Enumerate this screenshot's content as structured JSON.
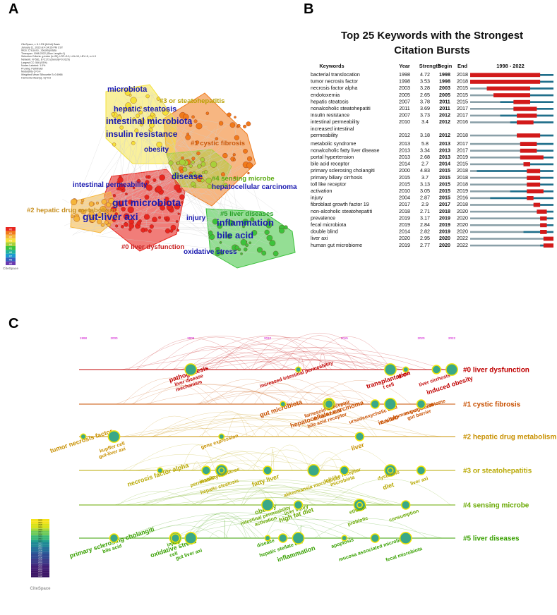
{
  "panels": {
    "a": "A",
    "b": "B",
    "c": "C"
  },
  "chart_data": [
    {
      "type": "network",
      "panel": "A",
      "info_lines": [
        "CiteSpace, v. 6.1.R6 (64-bit) Basic",
        "January 11, 2023 at 4:34:26 PM CST",
        "WoS: C:\\Users\\...\\Desktop\\data",
        "Timespan: 1998-2022 (Slice Length=1)",
        "Selection Criteria: g-index (k=25), LRF=3.0, L/N=10, LBY=5, e=1.0",
        "Network: N=581, E=2173 (Density=0.0129)",
        "Largest CC: 546 (93%)",
        "Nodes Labeled: 1.0%",
        "Pruning: Pathfinder",
        "Modularity Q=0.4",
        "Weighted Mean Silhouette S=0.6966",
        "Harmonic Mean(Q, S)=0.5"
      ],
      "clusters": [
        {
          "id": "#0 liver dysfunction",
          "color": "#e8261f"
        },
        {
          "id": "#1 cystic fibrosis",
          "color": "#f07a1a"
        },
        {
          "id": "#2 hepatic drug metabolism",
          "color": "#f5b53a"
        },
        {
          "id": "#3 or steatohepatitis",
          "color": "#f4e13a"
        },
        {
          "id": "#4 sensing microbe",
          "color": "#a8d03a"
        },
        {
          "id": "#5 liver diseases",
          "color": "#3cc23c"
        }
      ],
      "keywords": [
        "microbiota",
        "hepatic steatosis",
        "intestinal microbiota",
        "insulin resistance",
        "obesity",
        "disease",
        "hepatocellular carcinoma",
        "intestinal permeability",
        "gut microbiota",
        "gut-liver axi",
        "injury",
        "inflammation",
        "bile acid",
        "oxidative stress"
      ],
      "legend_labels": [
        "#0",
        "#1",
        "#2",
        "#3",
        "#4",
        "#5",
        "#6",
        "#7",
        "#8",
        "#9"
      ],
      "legend_colors": [
        "#e8261f",
        "#f07a1a",
        "#f5b53a",
        "#f4e13a",
        "#a8d03a",
        "#3cc23c",
        "#1fb39a",
        "#1a9ad0",
        "#3460c0",
        "#6a3ab0"
      ],
      "logo": "CiteSpace"
    },
    {
      "type": "table",
      "panel": "B",
      "title": [
        "Top 25 Keywords with the Strongest",
        "Citation Bursts"
      ],
      "columns": [
        "Keywords",
        "Year",
        "Strength",
        "Begin",
        "End",
        "1998 - 2022"
      ],
      "range": [
        1998,
        2022
      ],
      "rows": [
        {
          "keyword": [
            "bacterial translocation"
          ],
          "year": 1998,
          "strength": "4.72",
          "begin": 1998,
          "end": 2018
        },
        {
          "keyword": [
            "tumor necrosis factor"
          ],
          "year": 1998,
          "strength": "3.53",
          "begin": 1998,
          "end": 2018
        },
        {
          "keyword": [
            "necrosis factor alpha"
          ],
          "year": 2003,
          "strength": "3.28",
          "begin": 2003,
          "end": 2015
        },
        {
          "keyword": [
            "endotoxemia"
          ],
          "year": 2005,
          "strength": "2.65",
          "begin": 2005,
          "end": 2015
        },
        {
          "keyword": [
            "hepatic steatosis"
          ],
          "year": 2007,
          "strength": "3.78",
          "begin": 2011,
          "end": 2015
        },
        {
          "keyword": [
            "nonalcoholic steatohepatiti"
          ],
          "year": 2011,
          "strength": "3.69",
          "begin": 2011,
          "end": 2017
        },
        {
          "keyword": [
            "insulin resistance"
          ],
          "year": 2007,
          "strength": "3.73",
          "begin": 2012,
          "end": 2017
        },
        {
          "keyword": [
            "intestinal permeability"
          ],
          "year": 2010,
          "strength": "3.4",
          "begin": 2012,
          "end": 2016
        },
        {
          "keyword": [
            "increased intestinal",
            "permeability"
          ],
          "year": 2012,
          "strength": "3.18",
          "begin": 2012,
          "end": 2018
        },
        {
          "keyword": [
            "metabolic syndrome"
          ],
          "year": 2013,
          "strength": "5.8",
          "begin": 2013,
          "end": 2017
        },
        {
          "keyword": [
            "nonalcoholic fatty liver disease"
          ],
          "year": 2013,
          "strength": "3.34",
          "begin": 2013,
          "end": 2017
        },
        {
          "keyword": [
            "portal hypertension"
          ],
          "year": 2013,
          "strength": "2.68",
          "begin": 2013,
          "end": 2019
        },
        {
          "keyword": [
            "bile acid receptor"
          ],
          "year": 2014,
          "strength": "2.7",
          "begin": 2014,
          "end": 2015
        },
        {
          "keyword": [
            "primary sclerosing cholangiti"
          ],
          "year": 2000,
          "strength": "4.83",
          "begin": 2015,
          "end": 2018
        },
        {
          "keyword": [
            "primary biliary cirrhosis"
          ],
          "year": 2015,
          "strength": "3.7",
          "begin": 2015,
          "end": 2018
        },
        {
          "keyword": [
            "toll like receptor"
          ],
          "year": 2015,
          "strength": "3.13",
          "begin": 2015,
          "end": 2018
        },
        {
          "keyword": [
            "activation"
          ],
          "year": 2010,
          "strength": "3.05",
          "begin": 2015,
          "end": 2019
        },
        {
          "keyword": [
            "injury"
          ],
          "year": 2004,
          "strength": "2.87",
          "begin": 2015,
          "end": 2016
        },
        {
          "keyword": [
            "fibroblast growth factor 19"
          ],
          "year": 2017,
          "strength": "2.9",
          "begin": 2017,
          "end": 2018
        },
        {
          "keyword": [
            "non-alcoholic steatohepatiti"
          ],
          "year": 2018,
          "strength": "2.71",
          "begin": 2018,
          "end": 2020
        },
        {
          "keyword": [
            "prevalence"
          ],
          "year": 2019,
          "strength": "3.17",
          "begin": 2019,
          "end": 2020
        },
        {
          "keyword": [
            "fecal microbiota"
          ],
          "year": 2019,
          "strength": "2.84",
          "begin": 2019,
          "end": 2020
        },
        {
          "keyword": [
            "double blind"
          ],
          "year": 2014,
          "strength": "2.82",
          "begin": 2019,
          "end": 2020
        },
        {
          "keyword": [
            "liver axi"
          ],
          "year": 2020,
          "strength": "2.95",
          "begin": 2020,
          "end": 2022
        },
        {
          "keyword": [
            "human gut microbiome"
          ],
          "year": 2019,
          "strength": "2.77",
          "begin": 2020,
          "end": 2022
        }
      ]
    },
    {
      "type": "timeline",
      "panel": "C",
      "year_ticks": [
        1998,
        2000,
        2005,
        2010,
        2015,
        2020,
        2022
      ],
      "clusters": [
        {
          "label": "#0 liver dysfunction",
          "color": "#c00000",
          "keywords": [
            {
              "text": "pathogenesis",
              "year": 2005
            },
            {
              "text": "liver disease",
              "year": 2005
            },
            {
              "text": "mechanism",
              "year": 2005
            },
            {
              "text": "increased intestinal permeability",
              "year": 2012
            },
            {
              "text": "transplantation",
              "year": 2018
            },
            {
              "text": "t cell",
              "year": 2018
            },
            {
              "text": "gene",
              "year": 2019
            },
            {
              "text": "liver cirrhosis",
              "year": 2021
            },
            {
              "text": "induced obesity",
              "year": 2022
            }
          ]
        },
        {
          "label": "#1 cystic fibrosis",
          "color": "#c85000",
          "keywords": [
            {
              "text": "gut microbiota",
              "year": 2011
            },
            {
              "text": "double blind",
              "year": 2014
            },
            {
              "text": "bile acid receptor",
              "year": 2014
            },
            {
              "text": "farnesoid x receptor",
              "year": 2014
            },
            {
              "text": "hepatocellular carcinoma",
              "year": 2014
            },
            {
              "text": "cancer",
              "year": 2018
            },
            {
              "text": "human gut microbiome",
              "year": 2020
            },
            {
              "text": "ursodeoxycholic acid",
              "year": 2017
            },
            {
              "text": "in vitro",
              "year": 2018
            },
            {
              "text": "management",
              "year": 2020
            },
            {
              "text": "gut barrier",
              "year": 2020
            }
          ]
        },
        {
          "label": "#2 hepatic drug metabolism",
          "color": "#c89000",
          "keywords": [
            {
              "text": "tumor necrosis factor",
              "year": 1998
            },
            {
              "text": "kupffer cell",
              "year": 2000
            },
            {
              "text": "gut-liver axi",
              "year": 2000
            },
            {
              "text": "gene expression",
              "year": 2007
            },
            {
              "text": "liver",
              "year": 2016
            }
          ]
        },
        {
          "label": "#3 or steatohepatitis",
          "color": "#b8a800",
          "keywords": [
            {
              "text": "necrosis factor alpha",
              "year": 2003
            },
            {
              "text": "permeability",
              "year": 2006
            },
            {
              "text": "hepatic steatosis",
              "year": 2007
            },
            {
              "text": "insulin resistance",
              "year": 2007
            },
            {
              "text": "fatty liver",
              "year": 2010
            },
            {
              "text": "akkermansia muciniphila",
              "year": 2013
            },
            {
              "text": "toll like receptor",
              "year": 2015
            },
            {
              "text": "microbiota",
              "year": 2015
            },
            {
              "text": "diet",
              "year": 2018
            },
            {
              "text": "dysbiosis",
              "year": 2018
            },
            {
              "text": "liver axi",
              "year": 2020
            }
          ]
        },
        {
          "label": "#4 sensing microbe",
          "color": "#68a800",
          "keywords": [
            {
              "text": "obesity",
              "year": 2010
            },
            {
              "text": "intestinal permeability",
              "year": 2010
            },
            {
              "text": "activation",
              "year": 2010
            },
            {
              "text": "liver injury",
              "year": 2012
            },
            {
              "text": "high fat diet",
              "year": 2012
            },
            {
              "text": "probiotic",
              "year": 2016
            },
            {
              "text": "ethanol",
              "year": 2016
            },
            {
              "text": "consumption",
              "year": 2019
            }
          ]
        },
        {
          "label": "#5 liver diseases",
          "color": "#38a000",
          "keywords": [
            {
              "text": "primary sclerosing cholangiti",
              "year": 2000
            },
            {
              "text": "bile acid",
              "year": 2000
            },
            {
              "text": "cell",
              "year": 2004
            },
            {
              "text": "injury",
              "year": 2004
            },
            {
              "text": "oxidative stress",
              "year": 2004
            },
            {
              "text": "gut liver axi",
              "year": 2005
            },
            {
              "text": "disease",
              "year": 2010
            },
            {
              "text": "hepatic stellate cell",
              "year": 2011
            },
            {
              "text": "inflammation",
              "year": 2012
            },
            {
              "text": "apoptosis",
              "year": 2015
            },
            {
              "text": "mucosa associated microbiota",
              "year": 2017
            },
            {
              "text": "fecal microbiota",
              "year": 2019
            }
          ]
        }
      ],
      "colorbar_years": [
        "2022",
        "2021",
        "2020",
        "2019",
        "2018",
        "2017",
        "2016",
        "2015",
        "2014",
        "2013",
        "2012",
        "2011",
        "2010",
        "2009",
        "2008",
        "2007",
        "2006",
        "2005",
        "2004",
        "2003",
        "2002",
        "2001",
        "2000",
        "1999",
        "1998"
      ],
      "logo": "CiteSpace"
    }
  ]
}
